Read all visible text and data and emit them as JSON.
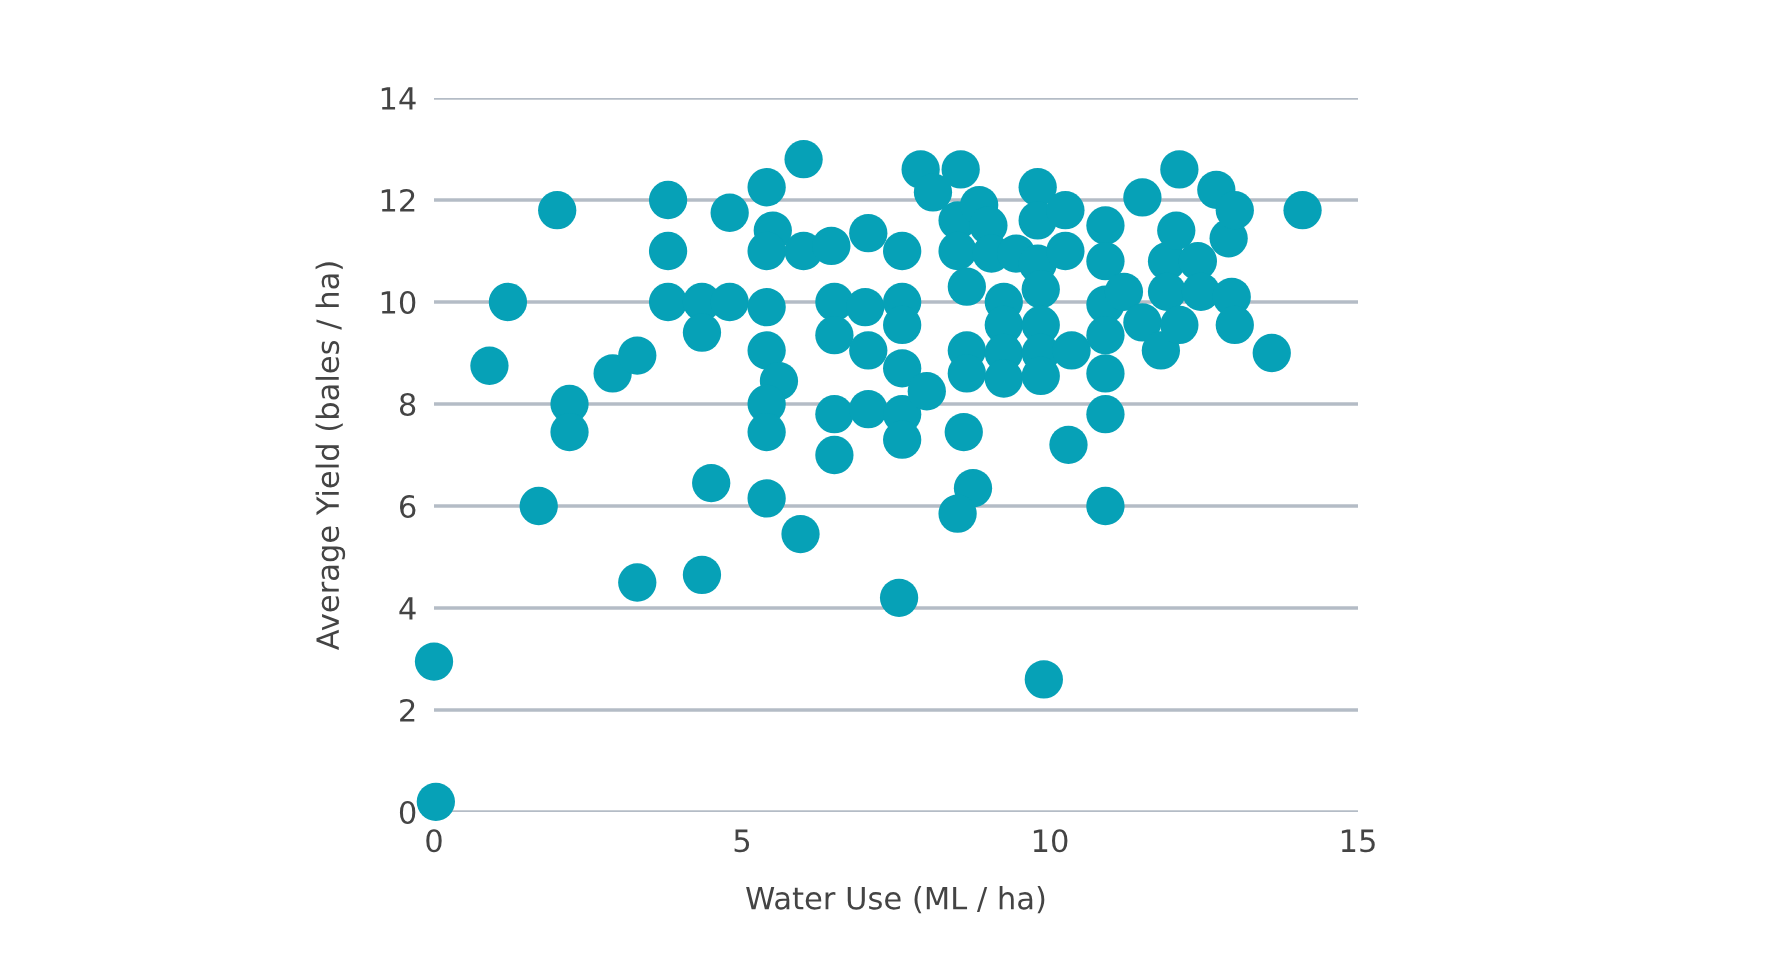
{
  "chart_data": {
    "type": "scatter",
    "xlabel": "Water Use (ML / ha)",
    "ylabel": "Average Yield (bales / ha)",
    "xlim": [
      0,
      15
    ],
    "ylim": [
      0,
      14
    ],
    "xticks": [
      0,
      5,
      10,
      15
    ],
    "yticks": [
      0,
      2,
      4,
      6,
      8,
      10,
      12,
      14
    ],
    "grid": "y",
    "marker": "circle",
    "series": [
      {
        "color": "#06a1b7",
        "x": [
          0.03,
          0,
          0.9,
          1.2,
          2.0,
          1.7,
          2.2,
          2.2,
          2.9,
          3.3,
          3.3,
          3.8,
          3.8,
          3.8,
          4.35,
          4.35,
          4.8,
          4.8,
          4.5,
          4.35,
          5.4,
          5.5,
          5.4,
          5.4,
          5.4,
          5.6,
          5.4,
          5.4,
          5.4,
          5.95,
          6.0,
          6.0,
          6.45,
          7.05,
          6.5,
          6.5,
          6.5,
          6.5,
          7.0,
          7.05,
          7.05,
          7.6,
          7.6,
          7.6,
          7.6,
          7.6,
          7.6,
          7.55,
          7.9,
          8.1,
          8.0,
          8.5,
          8.55,
          8.5,
          8.65,
          8.65,
          8.65,
          8.6,
          8.75,
          8.5,
          8.85,
          9.0,
          9.05,
          9.25,
          9.25,
          9.25,
          9.25,
          9.45,
          9.8,
          9.8,
          9.8,
          9.85,
          9.85,
          9.85,
          9.85,
          10.25,
          10.25,
          10.3,
          10.35,
          9.9,
          10.9,
          10.9,
          10.9,
          10.9,
          10.9,
          10.9,
          10.9,
          11.2,
          11.5,
          11.5,
          11.8,
          11.9,
          11.9,
          12.1,
          12.05,
          12.1,
          12.4,
          12.45,
          12.7,
          12.9,
          13.0,
          12.95,
          13.0,
          13.6,
          14.1
        ],
        "values": [
          0.2,
          2.95,
          8.75,
          10.0,
          11.8,
          6.0,
          8.0,
          7.45,
          8.6,
          8.95,
          4.5,
          12.0,
          11.0,
          10.0,
          10.0,
          9.4,
          10.0,
          11.75,
          6.45,
          4.65,
          12.25,
          11.4,
          11.0,
          9.9,
          9.05,
          8.45,
          8.0,
          7.45,
          6.15,
          5.45,
          12.8,
          11.0,
          11.1,
          11.35,
          10.0,
          9.35,
          7.8,
          7.0,
          9.9,
          9.05,
          7.9,
          11.0,
          10.0,
          9.55,
          8.7,
          7.8,
          7.3,
          4.2,
          12.6,
          12.15,
          8.25,
          11.6,
          12.6,
          11.0,
          10.3,
          9.05,
          8.6,
          7.45,
          6.35,
          5.85,
          11.9,
          11.5,
          10.95,
          10.0,
          9.55,
          9.0,
          8.5,
          10.95,
          12.25,
          11.6,
          10.75,
          10.25,
          9.55,
          9.0,
          8.55,
          11.8,
          11.0,
          7.2,
          9.05,
          2.6,
          11.5,
          10.8,
          9.95,
          9.35,
          8.6,
          7.8,
          6.0,
          10.2,
          12.05,
          9.6,
          9.05,
          10.8,
          10.2,
          12.6,
          11.4,
          9.55,
          10.8,
          10.2,
          12.2,
          11.25,
          11.8,
          10.1,
          9.55,
          9.0,
          11.8
        ]
      }
    ]
  }
}
